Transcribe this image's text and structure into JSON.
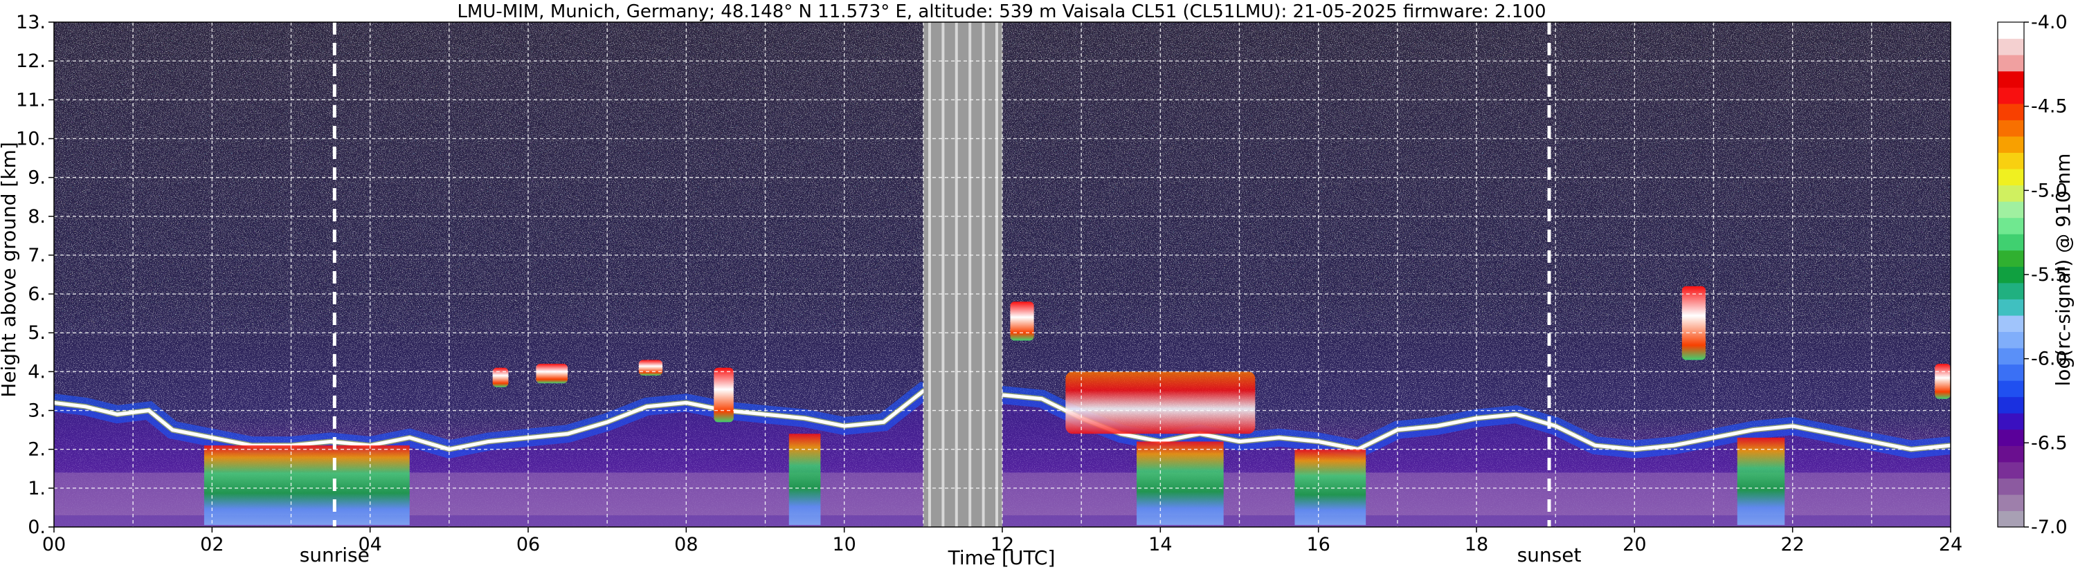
{
  "chart_data": {
    "type": "heatmap",
    "title": "LMU-MIM, Munich, Germany; 48.148° N 11.573° E, altitude: 539 m    Vaisala CL51 (CL51LMU): 21-05-2025    firmware: 2.100",
    "xlabel": "Time [UTC]",
    "ylabel": "Height above ground [km]",
    "xlim": [
      0,
      24
    ],
    "ylim": [
      0,
      13
    ],
    "x_ticks": [
      "00",
      "02",
      "04",
      "06",
      "08",
      "10",
      "12",
      "14",
      "16",
      "18",
      "20",
      "22",
      "24"
    ],
    "y_ticks": [
      "0.",
      "1.",
      "2.",
      "3.",
      "4.",
      "5.",
      "6.",
      "7.",
      "8.",
      "9.",
      "10.",
      "11.",
      "12.",
      "13."
    ],
    "grid": true,
    "colorbar": {
      "label": "log(rc-signal) @ 910 nm",
      "range": [
        -7.0,
        -4.0
      ],
      "ticks": [
        "-4.0",
        "-4.5",
        "-5.0",
        "-5.5",
        "-6.0",
        "-6.5",
        "-7.0"
      ],
      "colors": [
        "#a8a0b4",
        "#9e7fab",
        "#8c5aa0",
        "#7a2f97",
        "#6a0f8f",
        "#5a009a",
        "#3a10c0",
        "#1a30e0",
        "#2050f0",
        "#3a70f5",
        "#5a90f8",
        "#80aefa",
        "#a0c4fb",
        "#40c0c0",
        "#20b080",
        "#10a040",
        "#30b030",
        "#40d070",
        "#70e890",
        "#a0f0a0",
        "#d0f060",
        "#f0f020",
        "#f8d010",
        "#f8a000",
        "#f87000",
        "#f84000",
        "#f81010",
        "#e80000",
        "#f0a0a0",
        "#f4d0d0",
        "#ffffff"
      ]
    },
    "annotations": [
      {
        "text": "sunrise",
        "x": 3.55
      },
      {
        "text": "sunset",
        "x": 18.92
      }
    ],
    "no_data_interval": [
      11.0,
      12.0
    ],
    "layers": {
      "cloud_base": [
        [
          0.0,
          3.2
        ],
        [
          0.4,
          3.1
        ],
        [
          0.8,
          2.9
        ],
        [
          1.2,
          3.0
        ],
        [
          1.5,
          2.5
        ],
        [
          2.0,
          2.3
        ],
        [
          2.5,
          2.1
        ],
        [
          3.0,
          2.1
        ],
        [
          3.5,
          2.2
        ],
        [
          4.0,
          2.1
        ],
        [
          4.5,
          2.3
        ],
        [
          5.0,
          2.0
        ],
        [
          5.5,
          2.2
        ],
        [
          6.0,
          2.3
        ],
        [
          6.5,
          2.4
        ],
        [
          7.0,
          2.7
        ],
        [
          7.5,
          3.1
        ],
        [
          8.0,
          3.2
        ],
        [
          8.5,
          3.0
        ],
        [
          9.0,
          2.9
        ],
        [
          9.5,
          2.8
        ],
        [
          10.0,
          2.6
        ],
        [
          10.5,
          2.7
        ],
        [
          11.0,
          3.5
        ],
        [
          12.0,
          3.4
        ],
        [
          12.5,
          3.3
        ],
        [
          13.0,
          2.8
        ],
        [
          13.5,
          2.4
        ],
        [
          14.0,
          2.2
        ],
        [
          14.5,
          2.4
        ],
        [
          15.0,
          2.2
        ],
        [
          15.5,
          2.3
        ],
        [
          16.0,
          2.2
        ],
        [
          16.5,
          2.0
        ],
        [
          17.0,
          2.5
        ],
        [
          17.5,
          2.6
        ],
        [
          18.0,
          2.8
        ],
        [
          18.5,
          2.9
        ],
        [
          19.0,
          2.6
        ],
        [
          19.5,
          2.1
        ],
        [
          20.0,
          2.0
        ],
        [
          20.5,
          2.1
        ],
        [
          21.0,
          2.3
        ],
        [
          21.5,
          2.5
        ],
        [
          22.0,
          2.6
        ],
        [
          22.5,
          2.4
        ],
        [
          23.0,
          2.2
        ],
        [
          23.5,
          2.0
        ],
        [
          24.0,
          2.1
        ]
      ],
      "elevated_features": [
        {
          "x0": 5.55,
          "x1": 5.75,
          "y0": 3.6,
          "y1": 4.1
        },
        {
          "x0": 6.1,
          "x1": 6.5,
          "y0": 3.7,
          "y1": 4.2
        },
        {
          "x0": 7.4,
          "x1": 7.7,
          "y0": 3.9,
          "y1": 4.3
        },
        {
          "x0": 8.35,
          "x1": 8.6,
          "y0": 2.7,
          "y1": 4.1
        },
        {
          "x0": 12.1,
          "x1": 12.4,
          "y0": 4.8,
          "y1": 5.8
        },
        {
          "x0": 20.6,
          "x1": 20.9,
          "y0": 4.3,
          "y1": 6.2
        },
        {
          "x0": 23.8,
          "x1": 24.0,
          "y0": 3.3,
          "y1": 4.2
        }
      ],
      "rain_shafts": [
        {
          "x0": 1.9,
          "x1": 4.5,
          "top": 2.1
        },
        {
          "x0": 9.3,
          "x1": 9.7,
          "top": 2.4
        },
        {
          "x0": 13.7,
          "x1": 14.8,
          "top": 2.2
        },
        {
          "x0": 15.7,
          "x1": 16.6,
          "top": 2.0
        },
        {
          "x0": 21.3,
          "x1": 21.9,
          "top": 2.3
        }
      ],
      "dense_aerosol_regions": [
        {
          "x0": 12.8,
          "x1": 15.2,
          "y0": 2.4,
          "y1": 4.0
        }
      ]
    }
  }
}
